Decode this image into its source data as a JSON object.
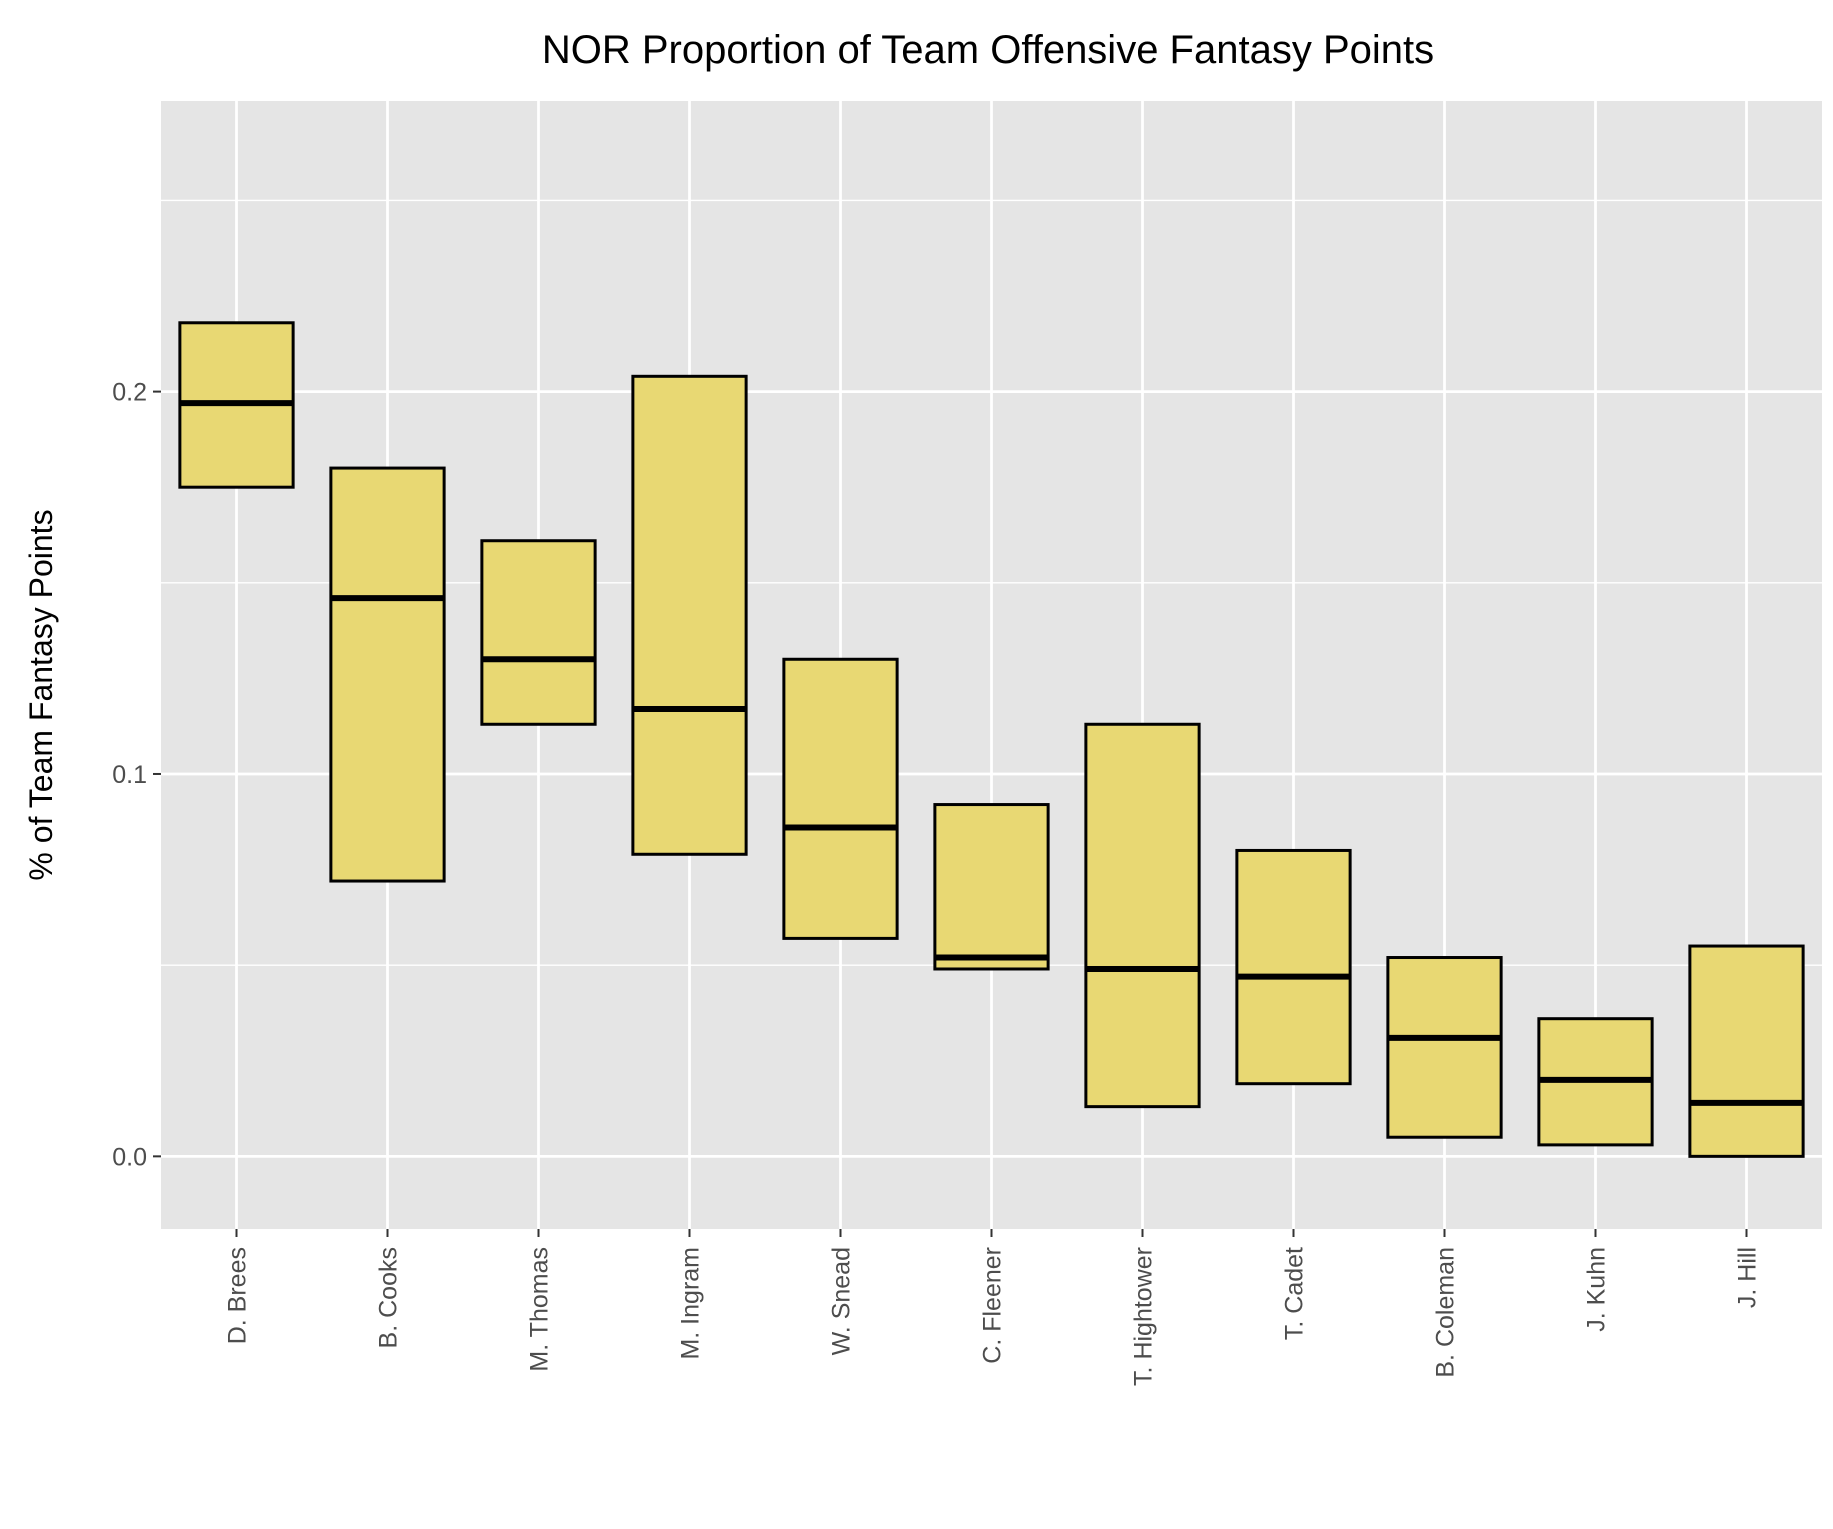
{
  "chart_data": {
    "type": "boxplot",
    "title": "NOR Proportion of Team Offensive Fantasy Points",
    "xlabel": "",
    "ylabel": "% of Team Fantasy Points",
    "ylim": [
      -0.019,
      0.276
    ],
    "yticks": [
      0.0,
      0.1,
      0.2
    ],
    "ytick_labels": [
      "0.0",
      "0.1",
      "0.2"
    ],
    "grid": true,
    "legend": "none",
    "colors": {
      "panel_background": "#e5e5e5",
      "grid": "#ffffff",
      "box_fill": "#e8d873",
      "box_outline": "#000000",
      "tick_label": "#4d4d4d"
    },
    "categories": [
      "D. Brees",
      "B. Cooks",
      "M. Thomas",
      "M. Ingram",
      "W. Snead",
      "C. Fleener",
      "T. Hightower",
      "T. Cadet",
      "B. Coleman",
      "J. Kuhn",
      "J. Hill"
    ],
    "boxes": [
      {
        "category": "D. Brees",
        "lower": 0.175,
        "median": 0.197,
        "upper": 0.218
      },
      {
        "category": "B. Cooks",
        "lower": 0.072,
        "median": 0.146,
        "upper": 0.18
      },
      {
        "category": "M. Thomas",
        "lower": 0.113,
        "median": 0.13,
        "upper": 0.161
      },
      {
        "category": "M. Ingram",
        "lower": 0.079,
        "median": 0.117,
        "upper": 0.204
      },
      {
        "category": "W. Snead",
        "lower": 0.057,
        "median": 0.086,
        "upper": 0.13
      },
      {
        "category": "C. Fleener",
        "lower": 0.049,
        "median": 0.052,
        "upper": 0.092
      },
      {
        "category": "T. Hightower",
        "lower": 0.013,
        "median": 0.049,
        "upper": 0.113
      },
      {
        "category": "T. Cadet",
        "lower": 0.019,
        "median": 0.047,
        "upper": 0.08
      },
      {
        "category": "B. Coleman",
        "lower": 0.005,
        "median": 0.031,
        "upper": 0.052
      },
      {
        "category": "J. Kuhn",
        "lower": 0.003,
        "median": 0.02,
        "upper": 0.036
      },
      {
        "category": "J. Hill",
        "lower": 0.0,
        "median": 0.014,
        "upper": 0.055
      }
    ]
  }
}
